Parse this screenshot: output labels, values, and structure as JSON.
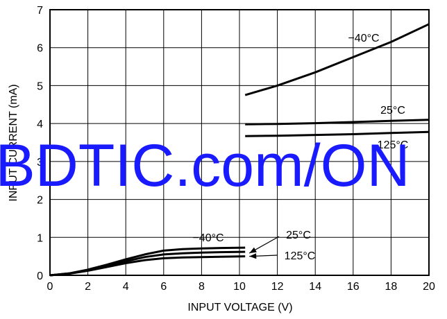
{
  "chart_data": {
    "type": "line",
    "title": "",
    "xlabel": "INPUT VOLTAGE (V)",
    "ylabel": "INPUT CURRENT (mA)",
    "xlim": [
      0,
      20
    ],
    "ylim": [
      0,
      7
    ],
    "xticks": [
      0,
      2,
      4,
      6,
      8,
      10,
      12,
      14,
      16,
      18,
      20
    ],
    "yticks": [
      0,
      1,
      2,
      3,
      4,
      5,
      6,
      7
    ],
    "grid": true,
    "series": [
      {
        "name": "−40°C",
        "x": [
          10.3,
          12,
          14,
          16,
          18,
          20
        ],
        "y": [
          4.75,
          5.0,
          5.35,
          5.75,
          6.15,
          6.62
        ]
      },
      {
        "name": "25°C",
        "x": [
          10.3,
          12,
          14,
          16,
          18,
          20
        ],
        "y": [
          3.98,
          3.99,
          4.01,
          4.04,
          4.07,
          4.1
        ]
      },
      {
        "name": "125°C",
        "x": [
          10.3,
          12,
          14,
          16,
          18,
          20
        ],
        "y": [
          3.67,
          3.68,
          3.7,
          3.72,
          3.75,
          3.78
        ]
      },
      {
        "name": "−40°C",
        "x": [
          0,
          1,
          2,
          3,
          4,
          5,
          6,
          7,
          8,
          9,
          10.3
        ],
        "y": [
          0,
          0.05,
          0.15,
          0.28,
          0.42,
          0.55,
          0.65,
          0.69,
          0.71,
          0.72,
          0.73
        ]
      },
      {
        "name": "25°C",
        "x": [
          0,
          1,
          2,
          3,
          4,
          5,
          6,
          7,
          8,
          9,
          10.3
        ],
        "y": [
          0,
          0.05,
          0.14,
          0.25,
          0.37,
          0.48,
          0.55,
          0.58,
          0.6,
          0.61,
          0.62
        ]
      },
      {
        "name": "125°C",
        "x": [
          0,
          1,
          2,
          3,
          4,
          5,
          6,
          7,
          8,
          9,
          10.3
        ],
        "y": [
          0,
          0.04,
          0.12,
          0.22,
          0.32,
          0.4,
          0.45,
          0.47,
          0.48,
          0.49,
          0.5
        ]
      }
    ],
    "labels": {
      "upper_m40": "−40°C",
      "upper_25": "25°C",
      "upper_125": "125°C",
      "lower_m40": "−40°C",
      "lower_25": "25°C",
      "lower_125": "125°C"
    }
  },
  "watermark": "BDTIC.com/ON"
}
